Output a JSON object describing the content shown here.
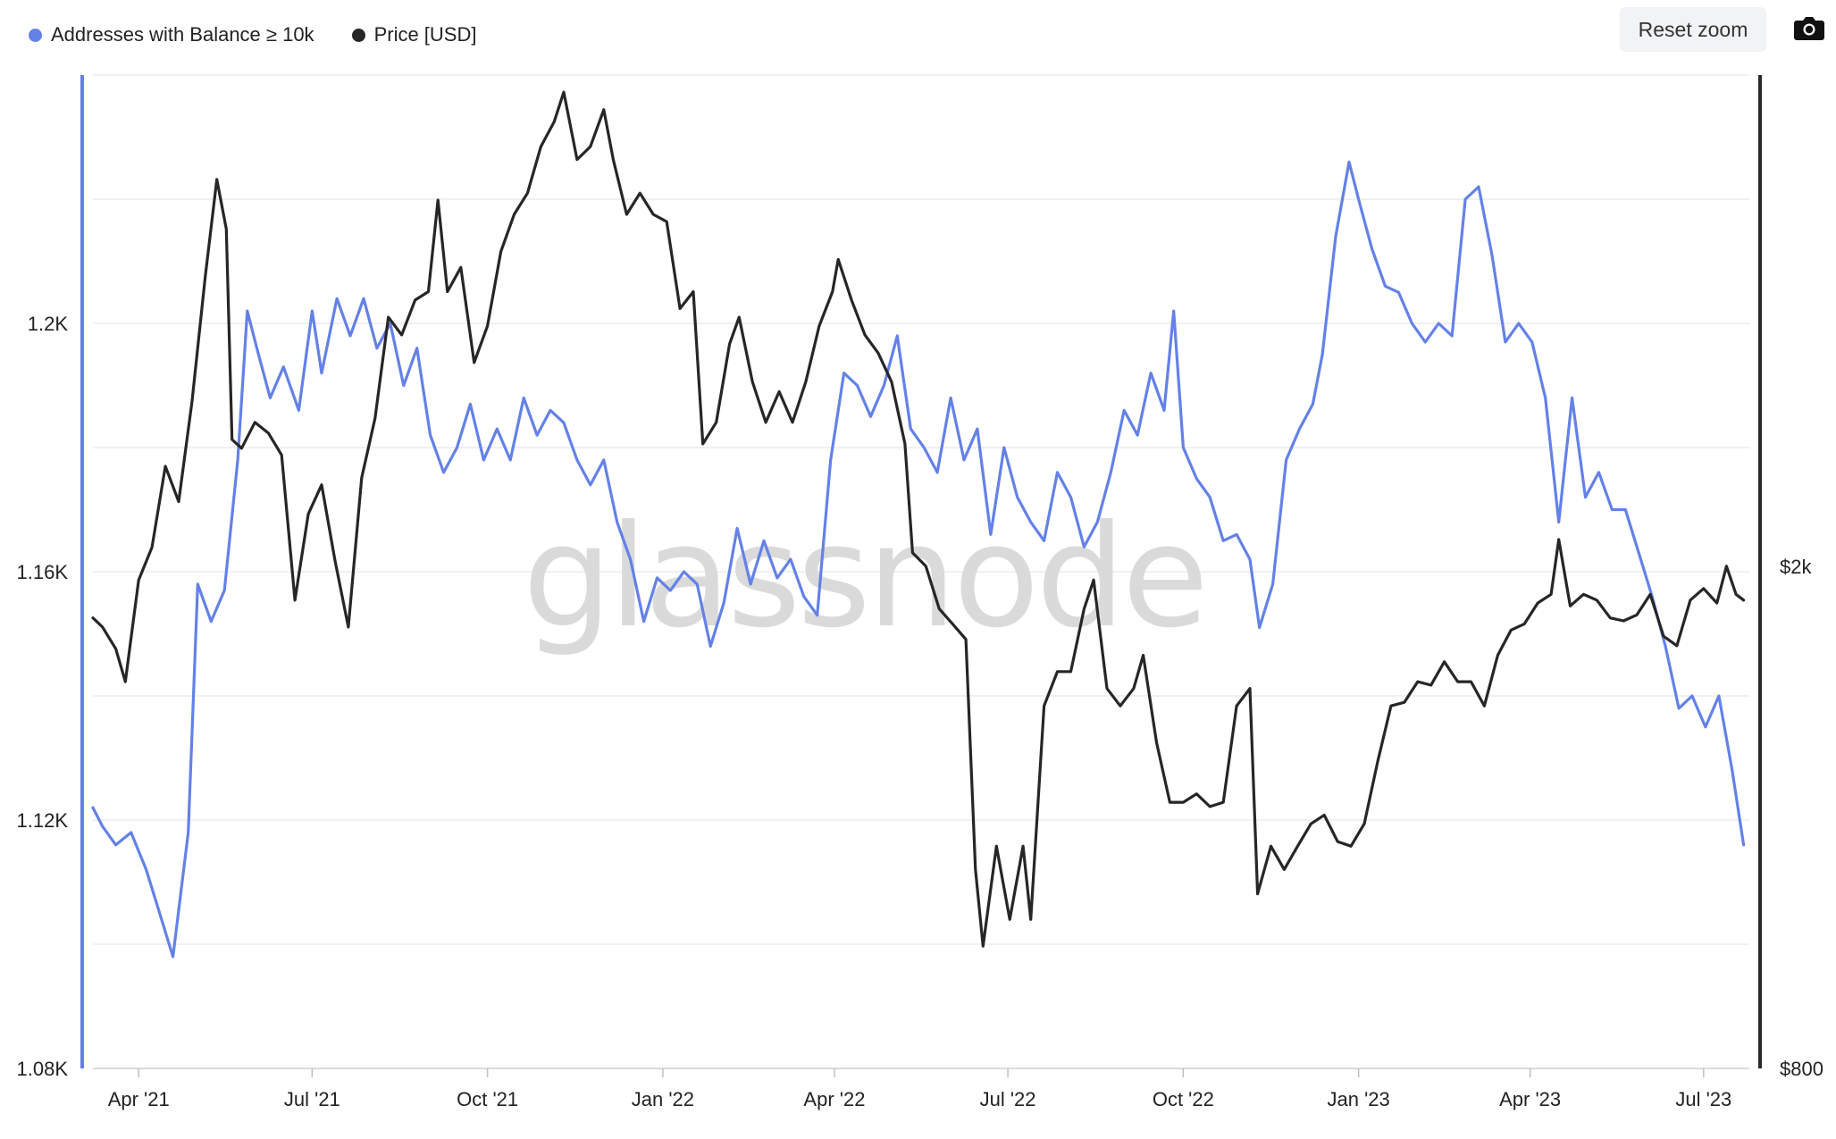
{
  "legend": {
    "addresses_label": "Addresses with Balance ≥ 10k",
    "price_label": "Price [USD]"
  },
  "toolbar": {
    "reset_zoom_label": "Reset zoom",
    "export_icon": "camera-icon"
  },
  "watermark": "glassnode",
  "colors": {
    "addresses": "#6481e8",
    "price": "#262626",
    "grid": "#e8e8e8"
  },
  "chart_data": {
    "type": "line",
    "x_tick_labels": [
      "Apr '21",
      "Jul '21",
      "Oct '21",
      "Jan '22",
      "Apr '22",
      "Jul '22",
      "Oct '22",
      "Jan '23",
      "Apr '23",
      "Jul '23"
    ],
    "x_tick_dates": [
      "2021-04-01",
      "2021-07-01",
      "2021-10-01",
      "2022-01-01",
      "2022-04-01",
      "2022-07-01",
      "2022-10-01",
      "2023-01-01",
      "2023-04-01",
      "2023-07-01"
    ],
    "xlim": [
      "2021-03-08",
      "2023-07-25"
    ],
    "y_left": {
      "ticks": [
        1080,
        1120,
        1160,
        1200
      ],
      "tick_labels": [
        "1.08K",
        "1.12K",
        "1.16K",
        "1.2K"
      ],
      "range": [
        1080,
        1240
      ]
    },
    "y_right": {
      "scale": "log",
      "ticks": [
        800,
        2000
      ],
      "tick_labels": [
        "$800",
        "$2k"
      ],
      "range": [
        800,
        4900
      ]
    },
    "series": [
      {
        "name": "Addresses with Balance ≥ 10k",
        "axis": "left",
        "points": [
          [
            "2021-03-08",
            1122
          ],
          [
            "2021-03-13",
            1119
          ],
          [
            "2021-03-20",
            1116
          ],
          [
            "2021-03-28",
            1118
          ],
          [
            "2021-04-05",
            1112
          ],
          [
            "2021-04-12",
            1105
          ],
          [
            "2021-04-19",
            1098
          ],
          [
            "2021-04-27",
            1118
          ],
          [
            "2021-05-02",
            1158
          ],
          [
            "2021-05-09",
            1152
          ],
          [
            "2021-05-16",
            1157
          ],
          [
            "2021-05-23",
            1178
          ],
          [
            "2021-05-28",
            1202
          ],
          [
            "2021-06-02",
            1196
          ],
          [
            "2021-06-09",
            1188
          ],
          [
            "2021-06-16",
            1193
          ],
          [
            "2021-06-24",
            1186
          ],
          [
            "2021-07-01",
            1202
          ],
          [
            "2021-07-06",
            1192
          ],
          [
            "2021-07-14",
            1204
          ],
          [
            "2021-07-21",
            1198
          ],
          [
            "2021-07-28",
            1204
          ],
          [
            "2021-08-04",
            1196
          ],
          [
            "2021-08-11",
            1200
          ],
          [
            "2021-08-18",
            1190
          ],
          [
            "2021-08-25",
            1196
          ],
          [
            "2021-09-01",
            1182
          ],
          [
            "2021-09-08",
            1176
          ],
          [
            "2021-09-15",
            1180
          ],
          [
            "2021-09-22",
            1187
          ],
          [
            "2021-09-29",
            1178
          ],
          [
            "2021-10-06",
            1183
          ],
          [
            "2021-10-13",
            1178
          ],
          [
            "2021-10-20",
            1188
          ],
          [
            "2021-10-27",
            1182
          ],
          [
            "2021-11-03",
            1186
          ],
          [
            "2021-11-10",
            1184
          ],
          [
            "2021-11-17",
            1178
          ],
          [
            "2021-11-24",
            1174
          ],
          [
            "2021-12-01",
            1178
          ],
          [
            "2021-12-08",
            1168
          ],
          [
            "2021-12-15",
            1162
          ],
          [
            "2021-12-22",
            1152
          ],
          [
            "2021-12-29",
            1159
          ],
          [
            "2022-01-05",
            1157
          ],
          [
            "2022-01-12",
            1160
          ],
          [
            "2022-01-19",
            1158
          ],
          [
            "2022-01-26",
            1148
          ],
          [
            "2022-02-02",
            1155
          ],
          [
            "2022-02-09",
            1167
          ],
          [
            "2022-02-16",
            1158
          ],
          [
            "2022-02-23",
            1165
          ],
          [
            "2022-03-02",
            1159
          ],
          [
            "2022-03-09",
            1162
          ],
          [
            "2022-03-16",
            1156
          ],
          [
            "2022-03-23",
            1153
          ],
          [
            "2022-03-30",
            1178
          ],
          [
            "2022-04-06",
            1192
          ],
          [
            "2022-04-13",
            1190
          ],
          [
            "2022-04-20",
            1185
          ],
          [
            "2022-04-27",
            1190
          ],
          [
            "2022-05-04",
            1198
          ],
          [
            "2022-05-11",
            1183
          ],
          [
            "2022-05-18",
            1180
          ],
          [
            "2022-05-25",
            1176
          ],
          [
            "2022-06-01",
            1188
          ],
          [
            "2022-06-08",
            1178
          ],
          [
            "2022-06-15",
            1183
          ],
          [
            "2022-06-22",
            1166
          ],
          [
            "2022-06-29",
            1180
          ],
          [
            "2022-07-06",
            1172
          ],
          [
            "2022-07-13",
            1168
          ],
          [
            "2022-07-20",
            1165
          ],
          [
            "2022-07-27",
            1176
          ],
          [
            "2022-08-03",
            1172
          ],
          [
            "2022-08-10",
            1164
          ],
          [
            "2022-08-17",
            1168
          ],
          [
            "2022-08-24",
            1176
          ],
          [
            "2022-08-31",
            1186
          ],
          [
            "2022-09-07",
            1182
          ],
          [
            "2022-09-14",
            1192
          ],
          [
            "2022-09-21",
            1186
          ],
          [
            "2022-09-26",
            1202
          ],
          [
            "2022-10-01",
            1180
          ],
          [
            "2022-10-08",
            1175
          ],
          [
            "2022-10-15",
            1172
          ],
          [
            "2022-10-22",
            1165
          ],
          [
            "2022-10-29",
            1166
          ],
          [
            "2022-11-05",
            1162
          ],
          [
            "2022-11-10",
            1151
          ],
          [
            "2022-11-17",
            1158
          ],
          [
            "2022-11-24",
            1178
          ],
          [
            "2022-12-01",
            1183
          ],
          [
            "2022-12-08",
            1187
          ],
          [
            "2022-12-13",
            1195
          ],
          [
            "2022-12-20",
            1214
          ],
          [
            "2022-12-27",
            1226
          ],
          [
            "2023-01-01",
            1220
          ],
          [
            "2023-01-08",
            1212
          ],
          [
            "2023-01-15",
            1206
          ],
          [
            "2023-01-22",
            1205
          ],
          [
            "2023-01-29",
            1200
          ],
          [
            "2023-02-05",
            1197
          ],
          [
            "2023-02-12",
            1200
          ],
          [
            "2023-02-19",
            1198
          ],
          [
            "2023-02-26",
            1220
          ],
          [
            "2023-03-05",
            1222
          ],
          [
            "2023-03-12",
            1211
          ],
          [
            "2023-03-19",
            1197
          ],
          [
            "2023-03-26",
            1200
          ],
          [
            "2023-04-02",
            1197
          ],
          [
            "2023-04-09",
            1188
          ],
          [
            "2023-04-16",
            1168
          ],
          [
            "2023-04-23",
            1188
          ],
          [
            "2023-04-30",
            1172
          ],
          [
            "2023-05-07",
            1176
          ],
          [
            "2023-05-14",
            1170
          ],
          [
            "2023-05-21",
            1170
          ],
          [
            "2023-05-28",
            1163
          ],
          [
            "2023-06-04",
            1156
          ],
          [
            "2023-06-11",
            1148
          ],
          [
            "2023-06-18",
            1138
          ],
          [
            "2023-06-25",
            1140
          ],
          [
            "2023-07-02",
            1135
          ],
          [
            "2023-07-09",
            1140
          ],
          [
            "2023-07-16",
            1128
          ],
          [
            "2023-07-22",
            1116
          ]
        ]
      },
      {
        "name": "Price [USD]",
        "axis": "right",
        "points": [
          [
            "2021-03-08",
            1820
          ],
          [
            "2021-03-13",
            1790
          ],
          [
            "2021-03-20",
            1720
          ],
          [
            "2021-03-25",
            1620
          ],
          [
            "2021-04-01",
            1950
          ],
          [
            "2021-04-08",
            2070
          ],
          [
            "2021-04-15",
            2400
          ],
          [
            "2021-04-22",
            2250
          ],
          [
            "2021-04-29",
            2700
          ],
          [
            "2021-05-06",
            3400
          ],
          [
            "2021-05-12",
            4050
          ],
          [
            "2021-05-17",
            3700
          ],
          [
            "2021-05-20",
            2520
          ],
          [
            "2021-05-25",
            2480
          ],
          [
            "2021-06-01",
            2600
          ],
          [
            "2021-06-08",
            2550
          ],
          [
            "2021-06-15",
            2450
          ],
          [
            "2021-06-22",
            1880
          ],
          [
            "2021-06-29",
            2200
          ],
          [
            "2021-07-06",
            2320
          ],
          [
            "2021-07-13",
            2020
          ],
          [
            "2021-07-20",
            1790
          ],
          [
            "2021-07-27",
            2350
          ],
          [
            "2021-08-03",
            2620
          ],
          [
            "2021-08-10",
            3150
          ],
          [
            "2021-08-17",
            3050
          ],
          [
            "2021-08-24",
            3250
          ],
          [
            "2021-08-31",
            3300
          ],
          [
            "2021-09-05",
            3900
          ],
          [
            "2021-09-10",
            3300
          ],
          [
            "2021-09-17",
            3450
          ],
          [
            "2021-09-24",
            2900
          ],
          [
            "2021-10-01",
            3100
          ],
          [
            "2021-10-08",
            3550
          ],
          [
            "2021-10-15",
            3800
          ],
          [
            "2021-10-22",
            3950
          ],
          [
            "2021-10-29",
            4300
          ],
          [
            "2021-11-05",
            4500
          ],
          [
            "2021-11-10",
            4750
          ],
          [
            "2021-11-17",
            4200
          ],
          [
            "2021-11-24",
            4300
          ],
          [
            "2021-12-01",
            4600
          ],
          [
            "2021-12-06",
            4200
          ],
          [
            "2021-12-13",
            3800
          ],
          [
            "2021-12-20",
            3950
          ],
          [
            "2021-12-27",
            3800
          ],
          [
            "2022-01-03",
            3750
          ],
          [
            "2022-01-10",
            3200
          ],
          [
            "2022-01-17",
            3300
          ],
          [
            "2022-01-22",
            2500
          ],
          [
            "2022-01-29",
            2600
          ],
          [
            "2022-02-05",
            3000
          ],
          [
            "2022-02-10",
            3150
          ],
          [
            "2022-02-17",
            2800
          ],
          [
            "2022-02-24",
            2600
          ],
          [
            "2022-03-03",
            2750
          ],
          [
            "2022-03-10",
            2600
          ],
          [
            "2022-03-17",
            2800
          ],
          [
            "2022-03-24",
            3100
          ],
          [
            "2022-03-31",
            3300
          ],
          [
            "2022-04-03",
            3500
          ],
          [
            "2022-04-10",
            3250
          ],
          [
            "2022-04-17",
            3050
          ],
          [
            "2022-04-24",
            2950
          ],
          [
            "2022-05-01",
            2800
          ],
          [
            "2022-05-08",
            2500
          ],
          [
            "2022-05-12",
            2050
          ],
          [
            "2022-05-19",
            2000
          ],
          [
            "2022-05-26",
            1850
          ],
          [
            "2022-06-02",
            1800
          ],
          [
            "2022-06-09",
            1750
          ],
          [
            "2022-06-14",
            1150
          ],
          [
            "2022-06-18",
            1000
          ],
          [
            "2022-06-25",
            1200
          ],
          [
            "2022-07-02",
            1050
          ],
          [
            "2022-07-09",
            1200
          ],
          [
            "2022-07-13",
            1050
          ],
          [
            "2022-07-20",
            1550
          ],
          [
            "2022-07-27",
            1650
          ],
          [
            "2022-08-03",
            1650
          ],
          [
            "2022-08-10",
            1850
          ],
          [
            "2022-08-15",
            1950
          ],
          [
            "2022-08-22",
            1600
          ],
          [
            "2022-08-29",
            1550
          ],
          [
            "2022-09-05",
            1600
          ],
          [
            "2022-09-10",
            1700
          ],
          [
            "2022-09-17",
            1450
          ],
          [
            "2022-09-24",
            1300
          ],
          [
            "2022-10-01",
            1300
          ],
          [
            "2022-10-08",
            1320
          ],
          [
            "2022-10-15",
            1290
          ],
          [
            "2022-10-22",
            1300
          ],
          [
            "2022-10-29",
            1550
          ],
          [
            "2022-11-05",
            1600
          ],
          [
            "2022-11-09",
            1100
          ],
          [
            "2022-11-16",
            1200
          ],
          [
            "2022-11-23",
            1150
          ],
          [
            "2022-11-30",
            1200
          ],
          [
            "2022-12-07",
            1250
          ],
          [
            "2022-12-14",
            1270
          ],
          [
            "2022-12-21",
            1210
          ],
          [
            "2022-12-28",
            1200
          ],
          [
            "2023-01-04",
            1250
          ],
          [
            "2023-01-11",
            1400
          ],
          [
            "2023-01-18",
            1550
          ],
          [
            "2023-01-25",
            1560
          ],
          [
            "2023-02-01",
            1620
          ],
          [
            "2023-02-08",
            1610
          ],
          [
            "2023-02-15",
            1680
          ],
          [
            "2023-02-22",
            1620
          ],
          [
            "2023-03-01",
            1620
          ],
          [
            "2023-03-08",
            1550
          ],
          [
            "2023-03-15",
            1700
          ],
          [
            "2023-03-22",
            1780
          ],
          [
            "2023-03-29",
            1800
          ],
          [
            "2023-04-05",
            1870
          ],
          [
            "2023-04-12",
            1900
          ],
          [
            "2023-04-16",
            2100
          ],
          [
            "2023-04-22",
            1860
          ],
          [
            "2023-04-29",
            1900
          ],
          [
            "2023-05-06",
            1880
          ],
          [
            "2023-05-13",
            1820
          ],
          [
            "2023-05-20",
            1810
          ],
          [
            "2023-05-27",
            1830
          ],
          [
            "2023-06-03",
            1900
          ],
          [
            "2023-06-10",
            1760
          ],
          [
            "2023-06-17",
            1730
          ],
          [
            "2023-06-24",
            1880
          ],
          [
            "2023-07-01",
            1920
          ],
          [
            "2023-07-08",
            1870
          ],
          [
            "2023-07-13",
            2000
          ],
          [
            "2023-07-18",
            1900
          ],
          [
            "2023-07-22",
            1880
          ]
        ]
      }
    ]
  }
}
